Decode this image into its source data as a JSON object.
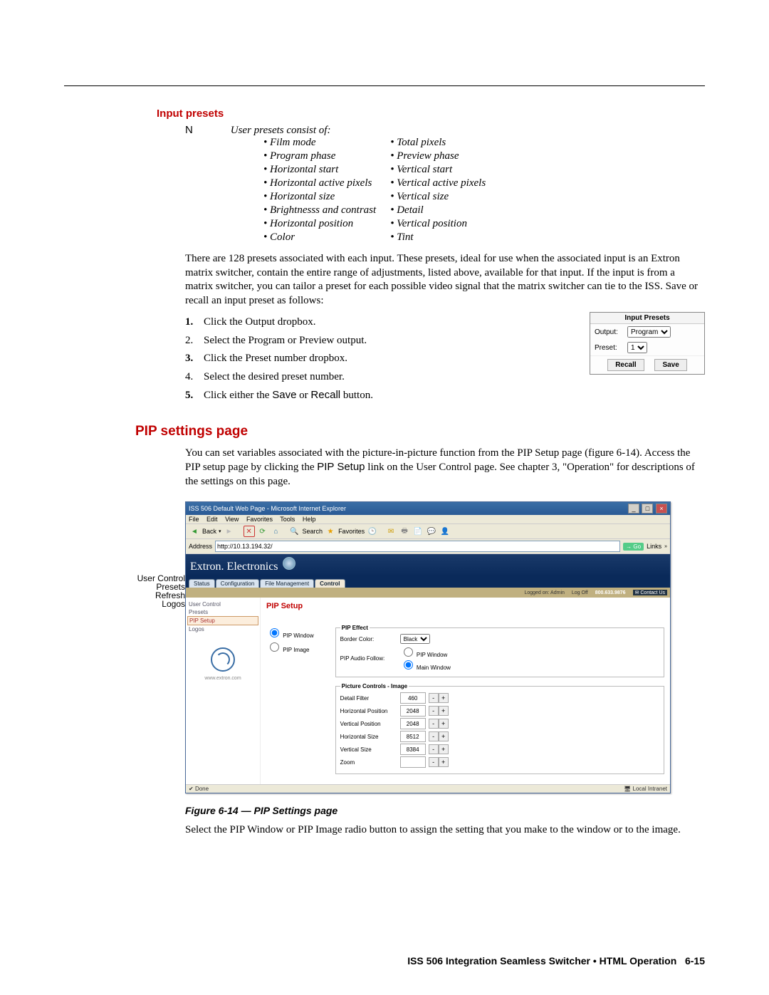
{
  "section_input_presets": "Input presets",
  "note_letter": "N",
  "note_intro": "User presets consist of:",
  "preset_items": [
    [
      "Film mode",
      "Total pixels"
    ],
    [
      "Program phase",
      "Preview phase"
    ],
    [
      "Horizontal start",
      "Vertical start"
    ],
    [
      "Horizontal active pixels",
      "Vertical active pixels"
    ],
    [
      "Horizontal size",
      "Vertical size"
    ],
    [
      "Brightnesss and contrast",
      "Detail"
    ],
    [
      "Horizontal position",
      "Vertical position"
    ],
    [
      "Color",
      "Tint"
    ]
  ],
  "para_presets": "There are 128 presets associated with each input.  These presets, ideal for use when the associated input is an Extron matrix switcher, contain the entire range of adjustments, listed above, available for that input.  If the input is from a matrix switcher, you can tailor a preset for each possible video signal that the matrix switcher can tie to the ISS.  Save or recall an input preset as follows:",
  "steps": [
    {
      "n": "1.",
      "bold": true,
      "t": "Click the Output dropbox."
    },
    {
      "n": "2.",
      "bold": false,
      "t": "Select the Program or Preview output."
    },
    {
      "n": "3.",
      "bold": true,
      "t": "Click the Preset number dropbox."
    },
    {
      "n": "4.",
      "bold": false,
      "t": "Select the desired preset number."
    },
    {
      "n": "5.",
      "bold": true,
      "t_pre": "Click either the ",
      "sans1": "Save",
      "mid": " or ",
      "sans2": "Recall",
      "t_post": " button."
    }
  ],
  "preset_box": {
    "title": "Input Presets",
    "output_label": "Output:",
    "output_value": "Program",
    "preset_label": "Preset:",
    "preset_value": "1",
    "recall": "Recall",
    "save": "Save"
  },
  "h2_pip": "PIP settings page",
  "para_pip_1a": "You can set variables associated with the picture-in-picture function from the PIP Setup page (figure 6-14).  Access the PIP setup page by clicking the ",
  "para_pip_sans": "PIP Setup",
  "para_pip_1b": " link on the User Control page.  See chapter 3, \"Operation\" for descriptions of the settings on this page.",
  "ie": {
    "title": "ISS 506 Default Web Page - Microsoft Internet Explorer",
    "menu": [
      "File",
      "Edit",
      "View",
      "Favorites",
      "Tools",
      "Help"
    ],
    "back": "Back",
    "search": "Search",
    "favorites": "Favorites",
    "addr_label": "Address",
    "addr_value": "http://10.13.194.32/",
    "go": "Go",
    "links": "Links",
    "brand": "Extron. Electronics",
    "tabs": [
      "Status",
      "Configuration",
      "File Management",
      "Control"
    ],
    "logged": "Logged on: Admin",
    "logoff": "Log Off",
    "phone": "800.633.9876",
    "contact": "Contact Us",
    "sidebar": [
      "User Control",
      "Presets",
      "PIP Setup",
      "Logos"
    ],
    "sb_url": "www.extron.com",
    "page_title": "PIP Setup",
    "radio_window": "PIP Window",
    "radio_image": "PIP Image",
    "fs_effect": "PIP Effect",
    "border_color_lbl": "Border Color:",
    "border_color_val": "Black",
    "audio_lbl": "PIP Audio Follow:",
    "audio_opt1": "PIP Window",
    "audio_opt2": "Main Window",
    "fs_pic": "Picture Controls - Image",
    "rows": [
      {
        "lbl": "Detail Filter",
        "val": "460"
      },
      {
        "lbl": "Horizontal Position",
        "val": "2048"
      },
      {
        "lbl": "Vertical Position",
        "val": "2048"
      },
      {
        "lbl": "Horizontal Size",
        "val": "8512"
      },
      {
        "lbl": "Vertical Size",
        "val": "8384"
      },
      {
        "lbl": "Zoom",
        "val": ""
      }
    ],
    "status_done": "Done",
    "status_intranet": "Local Intranet"
  },
  "callouts": [
    "User Control",
    "Presets",
    "Refresh",
    "Logos"
  ],
  "fig_caption": "Figure 6-14 — PIP Settings page",
  "para_after_fig": "Select the PIP Window or PIP Image radio button to assign the setting that you make to the window or to the image.",
  "footer_title": "ISS 506 Integration Seamless Switcher • HTML Operation",
  "footer_page": "6-15"
}
